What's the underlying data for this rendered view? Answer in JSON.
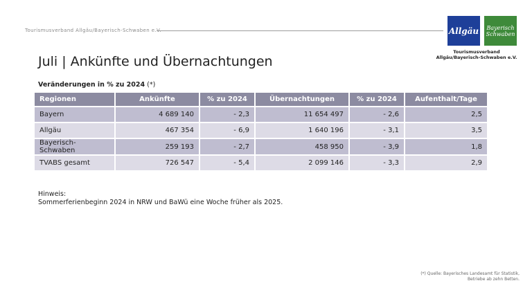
{
  "header": {
    "org_line": "Tourismusverband  Allgäu/Bayerisch-Schwaben  e.V."
  },
  "logos": {
    "allgaeu": "Allgäu",
    "bs_line1": "Bayerisch",
    "bs_line2": "Schwaben",
    "caption_line1": "Tourismusverband",
    "caption_line2": "Allgäu/Bayerisch-Schwaben e.V.",
    "colors": {
      "allgaeu": "#1e3f99",
      "bayerisch_schwaben": "#3e8a3a"
    }
  },
  "title": "Juli | Ankünfte und Übernachtungen",
  "subtitle": {
    "bold": "Veränderungen in % zu 2024",
    "suffix": " (*)"
  },
  "table": {
    "headers": [
      "Regionen",
      "Ankünfte",
      "% zu 2024",
      "Übernachtungen",
      "% zu 2024",
      "Aufenthalt/Tage"
    ],
    "rows": [
      [
        "Bayern",
        "4 689 140",
        "- 2,3",
        "11 654 497",
        "- 2,6",
        "2,5"
      ],
      [
        "Allgäu",
        "467 354",
        "- 6,9",
        "1 640 196",
        "- 3,1",
        "3,5"
      ],
      [
        "Bayerisch-Schwaben",
        "259 193",
        "- 2,7",
        "458 950",
        "- 3,9",
        "1,8"
      ],
      [
        "TVABS gesamt",
        "726 547",
        "- 5,4",
        "2 099 146",
        "- 3,3",
        "2,9"
      ]
    ],
    "colors": {
      "header": "#8c8ba1",
      "row_dark": "#bfbdd0",
      "row_light": "#dddbe6"
    }
  },
  "note": {
    "label": "Hinweis:",
    "text": "Sommerferienbeginn 2024 in NRW und BaWü eine Woche früher als 2025."
  },
  "footnote": {
    "line1": "(*) Quelle: Bayerisches Landesamt für Statistik,",
    "line2": "Betriebe ab zehn Betten."
  }
}
